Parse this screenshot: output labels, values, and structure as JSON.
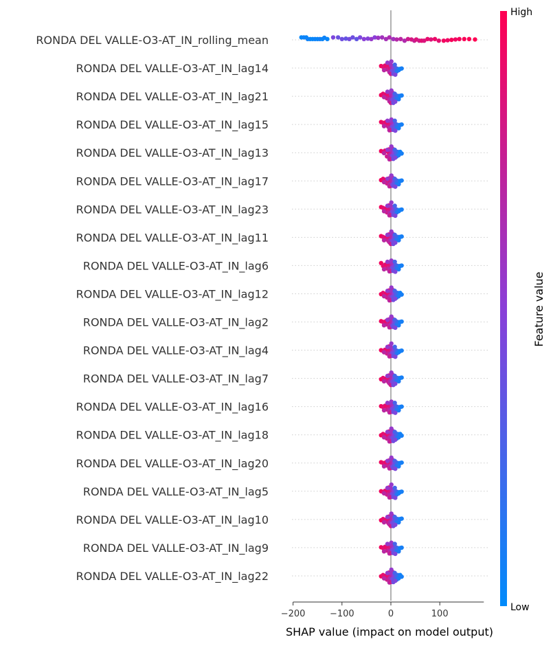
{
  "chart_data": {
    "type": "scatter",
    "subtype": "shap-beeswarm",
    "xlabel": "SHAP value (impact on model output)",
    "xlim": [
      -200,
      190
    ],
    "xticks": [
      -200,
      -100,
      0,
      100
    ],
    "colorbar": {
      "label": "Feature value",
      "high_label": "High",
      "low_label": "Low",
      "low_color": "#008bfb",
      "high_color": "#ff0052"
    },
    "zero_line_color": "#999999",
    "grid": false,
    "features": [
      {
        "name": "RONDA DEL VALLE-O3-AT_IN_rolling_mean",
        "points": [
          {
            "x": -183,
            "c": 0.02
          },
          {
            "x": -178,
            "c": 0.05
          },
          {
            "x": -173,
            "c": 0.03
          },
          {
            "x": -170,
            "c": 0.06
          },
          {
            "x": -165,
            "c": 0.04
          },
          {
            "x": -160,
            "c": 0.02
          },
          {
            "x": -155,
            "c": 0.05
          },
          {
            "x": -150,
            "c": 0.03
          },
          {
            "x": -145,
            "c": 0.07
          },
          {
            "x": -140,
            "c": 0.04
          },
          {
            "x": -136,
            "c": 0.05
          },
          {
            "x": -130,
            "c": 0.03
          },
          {
            "x": -118,
            "c": 0.45
          },
          {
            "x": -108,
            "c": 0.38
          },
          {
            "x": -100,
            "c": 0.4
          },
          {
            "x": -92,
            "c": 0.36
          },
          {
            "x": -85,
            "c": 0.42
          },
          {
            "x": -78,
            "c": 0.4
          },
          {
            "x": -70,
            "c": 0.35
          },
          {
            "x": -63,
            "c": 0.45
          },
          {
            "x": -55,
            "c": 0.5
          },
          {
            "x": -47,
            "c": 0.48
          },
          {
            "x": -40,
            "c": 0.55
          },
          {
            "x": -33,
            "c": 0.5
          },
          {
            "x": -26,
            "c": 0.58
          },
          {
            "x": -18,
            "c": 0.6
          },
          {
            "x": -10,
            "c": 0.62
          },
          {
            "x": -3,
            "c": 0.65
          },
          {
            "x": 5,
            "c": 0.6
          },
          {
            "x": 12,
            "c": 0.68
          },
          {
            "x": 20,
            "c": 0.7
          },
          {
            "x": 28,
            "c": 0.66
          },
          {
            "x": 35,
            "c": 0.78
          },
          {
            "x": 42,
            "c": 0.82
          },
          {
            "x": 48,
            "c": 0.76
          },
          {
            "x": 52,
            "c": 0.85
          },
          {
            "x": 58,
            "c": 0.8
          },
          {
            "x": 63,
            "c": 0.88
          },
          {
            "x": 68,
            "c": 0.84
          },
          {
            "x": 75,
            "c": 0.9
          },
          {
            "x": 82,
            "c": 0.86
          },
          {
            "x": 90,
            "c": 0.92
          },
          {
            "x": 98,
            "c": 0.88
          },
          {
            "x": 108,
            "c": 0.95
          },
          {
            "x": 116,
            "c": 0.93
          },
          {
            "x": 124,
            "c": 0.97
          },
          {
            "x": 132,
            "c": 0.94
          },
          {
            "x": 140,
            "c": 0.96
          },
          {
            "x": 150,
            "c": 0.98
          },
          {
            "x": 160,
            "c": 0.99
          },
          {
            "x": 172,
            "c": 1.0
          }
        ]
      },
      {
        "name": "RONDA DEL VALLE-O3-AT_IN_lag14"
      },
      {
        "name": "RONDA DEL VALLE-O3-AT_IN_lag21"
      },
      {
        "name": "RONDA DEL VALLE-O3-AT_IN_lag15"
      },
      {
        "name": "RONDA DEL VALLE-O3-AT_IN_lag13"
      },
      {
        "name": "RONDA DEL VALLE-O3-AT_IN_lag17"
      },
      {
        "name": "RONDA DEL VALLE-O3-AT_IN_lag23"
      },
      {
        "name": "RONDA DEL VALLE-O3-AT_IN_lag11"
      },
      {
        "name": "RONDA DEL VALLE-O3-AT_IN_lag6"
      },
      {
        "name": "RONDA DEL VALLE-O3-AT_IN_lag12"
      },
      {
        "name": "RONDA DEL VALLE-O3-AT_IN_lag2"
      },
      {
        "name": "RONDA DEL VALLE-O3-AT_IN_lag4"
      },
      {
        "name": "RONDA DEL VALLE-O3-AT_IN_lag7"
      },
      {
        "name": "RONDA DEL VALLE-O3-AT_IN_lag16"
      },
      {
        "name": "RONDA DEL VALLE-O3-AT_IN_lag18"
      },
      {
        "name": "RONDA DEL VALLE-O3-AT_IN_lag20"
      },
      {
        "name": "RONDA DEL VALLE-O3-AT_IN_lag5"
      },
      {
        "name": "RONDA DEL VALLE-O3-AT_IN_lag10"
      },
      {
        "name": "RONDA DEL VALLE-O3-AT_IN_lag9"
      },
      {
        "name": "RONDA DEL VALLE-O3-AT_IN_lag22"
      }
    ],
    "lag_points_template": [
      {
        "x": -20,
        "c": 0.95
      },
      {
        "x": -16,
        "c": 0.9
      },
      {
        "x": -12,
        "c": 0.85
      },
      {
        "x": -10,
        "c": 0.92
      },
      {
        "x": -8,
        "c": 0.8
      },
      {
        "x": -6,
        "c": 0.88
      },
      {
        "x": -5,
        "c": 0.75
      },
      {
        "x": -4,
        "c": 0.93
      },
      {
        "x": -3,
        "c": 0.7
      },
      {
        "x": -2,
        "c": 0.85
      },
      {
        "x": -1,
        "c": 0.65
      },
      {
        "x": 0,
        "c": 0.6
      },
      {
        "x": 0,
        "c": 0.78
      },
      {
        "x": 1,
        "c": 0.55
      },
      {
        "x": 2,
        "c": 0.68
      },
      {
        "x": 3,
        "c": 0.45
      },
      {
        "x": 4,
        "c": 0.6
      },
      {
        "x": 5,
        "c": 0.4
      },
      {
        "x": 6,
        "c": 0.5
      },
      {
        "x": 7,
        "c": 0.35
      },
      {
        "x": 8,
        "c": 0.25
      },
      {
        "x": 10,
        "c": 0.3
      },
      {
        "x": 12,
        "c": 0.15
      },
      {
        "x": 14,
        "c": 0.2
      },
      {
        "x": 16,
        "c": 0.1
      },
      {
        "x": 19,
        "c": 0.05
      },
      {
        "x": 22,
        "c": 0.08
      },
      {
        "x": -14,
        "c": 0.7
      },
      {
        "x": 9,
        "c": 0.45
      },
      {
        "x": -7,
        "c": 0.55
      }
    ]
  }
}
